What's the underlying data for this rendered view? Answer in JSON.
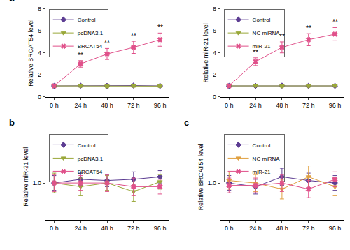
{
  "chart_data": [
    {
      "type": "line",
      "title": "a",
      "categories": [
        "0 h",
        "24 h",
        "48 h",
        "72 h",
        "96 h"
      ],
      "ylabel": "Relative BRCAT54 level",
      "ylim": [
        0,
        8
      ],
      "yticks": [
        0,
        2,
        4,
        6,
        8
      ],
      "legend": "upper left",
      "series": [
        {
          "name": "Control",
          "color": "#5c3c92",
          "marker": "diamond",
          "values": [
            1.0,
            1.02,
            1.0,
            1.03,
            1.0
          ],
          "error": [
            0.1,
            0.08,
            0.08,
            0.08,
            0.08
          ]
        },
        {
          "name": "pcDNA3.1",
          "color": "#9aa83a",
          "marker": "triangle-down",
          "values": [
            1.0,
            1.0,
            0.98,
            1.0,
            0.98
          ],
          "error": [
            0.12,
            0.12,
            0.15,
            0.12,
            0.12
          ]
        },
        {
          "name": "BRCAT54",
          "color": "#e0508a",
          "marker": "x",
          "values": [
            1.0,
            3.0,
            3.9,
            4.5,
            5.2
          ],
          "error": [
            0.1,
            0.3,
            0.5,
            0.55,
            0.6
          ]
        }
      ],
      "annotations": [
        {
          "x": "24 h",
          "text": "**"
        },
        {
          "x": "48 h",
          "text": "**"
        },
        {
          "x": "72 h",
          "text": "**"
        },
        {
          "x": "96 h",
          "text": "**"
        }
      ]
    },
    {
      "type": "line",
      "categories": [
        "0 h",
        "24 h",
        "48 h",
        "72 h",
        "96 h"
      ],
      "ylabel": "Relative miR-21 level",
      "ylim": [
        0,
        8
      ],
      "yticks": [
        0,
        2,
        4,
        6,
        8
      ],
      "legend": "upper left",
      "series": [
        {
          "name": "Control",
          "color": "#5c3c92",
          "marker": "diamond",
          "values": [
            1.0,
            1.0,
            1.02,
            1.0,
            1.0
          ],
          "error": [
            0.08,
            0.08,
            0.08,
            0.08,
            0.08
          ]
        },
        {
          "name": "NC miRNA",
          "color": "#9aa83a",
          "marker": "triangle-down",
          "values": [
            1.0,
            1.0,
            0.98,
            0.98,
            1.0
          ],
          "error": [
            0.1,
            0.1,
            0.1,
            0.1,
            0.1
          ]
        },
        {
          "name": "miR-21",
          "color": "#e0508a",
          "marker": "x",
          "values": [
            1.0,
            3.2,
            4.5,
            5.2,
            5.7
          ],
          "error": [
            0.1,
            0.35,
            0.5,
            0.55,
            0.6
          ]
        }
      ],
      "annotations": [
        {
          "x": "24 h",
          "text": "**"
        },
        {
          "x": "48 h",
          "text": "**"
        },
        {
          "x": "72 h",
          "text": "**"
        },
        {
          "x": "96 h",
          "text": "**"
        }
      ]
    },
    {
      "type": "line",
      "title": "b",
      "categories": [
        "0 h",
        "24 h",
        "48 h",
        "72 h",
        "96 h"
      ],
      "ylabel": "Relative miR-21 level",
      "ylim": [
        0.7,
        1.4
      ],
      "yticks": [
        {
          "value": 1,
          "label": "1.0"
        }
      ],
      "legend": "upper left",
      "series": [
        {
          "name": "Control",
          "color": "#5c3c92",
          "marker": "diamond",
          "values": [
            1.0,
            1.03,
            1.02,
            1.03,
            1.05
          ],
          "error": [
            0.06,
            0.05,
            0.05,
            0.06,
            0.05
          ]
        },
        {
          "name": "pcDNA3.1",
          "color": "#9aa83a",
          "marker": "triangle-down",
          "values": [
            1.0,
            0.97,
            1.0,
            0.93,
            1.01
          ],
          "error": [
            0.08,
            0.07,
            0.06,
            0.08,
            0.06
          ]
        },
        {
          "name": "BRCAT54",
          "color": "#e0508a",
          "marker": "x",
          "values": [
            1.0,
            1.0,
            1.0,
            0.97,
            0.97
          ],
          "error": [
            0.07,
            0.06,
            0.07,
            0.07,
            0.06
          ]
        }
      ]
    },
    {
      "type": "line",
      "title": "c",
      "categories": [
        "0 h",
        "24 h",
        "48 h",
        "72 h",
        "96 h"
      ],
      "ylabel": "Relative BRCAT54 level",
      "ylim": [
        0.7,
        1.4
      ],
      "yticks": [
        {
          "value": 1,
          "label": "1.0"
        }
      ],
      "legend": "upper left",
      "series": [
        {
          "name": "Control",
          "color": "#5c3c92",
          "marker": "diamond",
          "values": [
            1.0,
            0.97,
            1.05,
            1.02,
            1.0
          ],
          "error": [
            0.06,
            0.06,
            0.07,
            0.06,
            0.06
          ]
        },
        {
          "name": "NC miRNA",
          "color": "#e0a040",
          "marker": "triangle-down",
          "values": [
            1.02,
            1.0,
            0.95,
            1.05,
            0.97
          ],
          "error": [
            0.07,
            0.07,
            0.08,
            0.09,
            0.07
          ]
        },
        {
          "name": "miR-21",
          "color": "#e0508a",
          "marker": "x",
          "values": [
            0.98,
            0.98,
            1.0,
            0.95,
            1.03
          ],
          "error": [
            0.06,
            0.06,
            0.07,
            0.07,
            0.06
          ]
        }
      ]
    }
  ]
}
